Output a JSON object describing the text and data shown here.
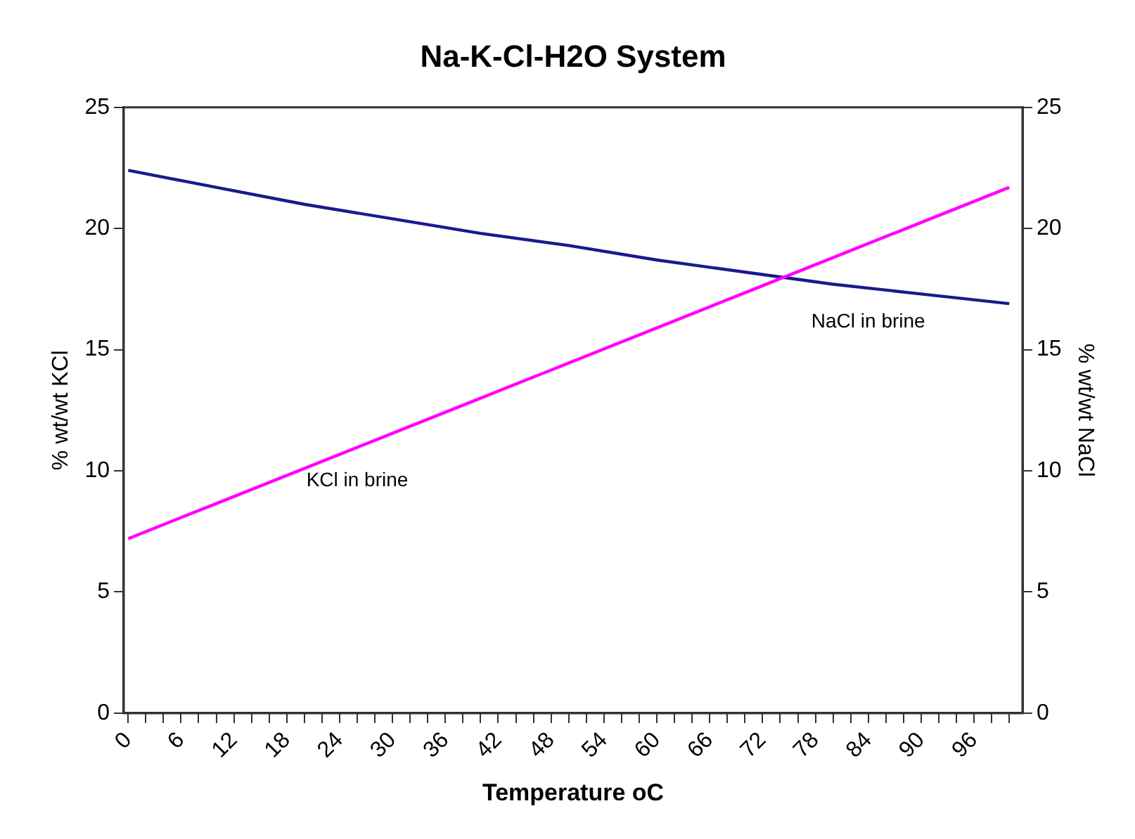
{
  "chart_data": {
    "type": "line",
    "title": "Na-K-Cl-H2O System",
    "xlabel": "Temperature oC",
    "ylabel": "% wt/wt KCl",
    "y2label": "% wt/wt NaCl",
    "x": [
      0,
      10,
      20,
      30,
      40,
      50,
      60,
      70,
      80,
      90,
      100
    ],
    "series": [
      {
        "name": "KCl in brine",
        "color": "#ff00ff",
        "values": [
          7.2,
          8.65,
          10.1,
          11.55,
          13.0,
          14.45,
          15.9,
          17.35,
          18.8,
          20.25,
          21.7
        ]
      },
      {
        "name": "NaCl in brine",
        "color": "#1a1a8c",
        "axis": "y2",
        "values": [
          22.4,
          21.7,
          21.0,
          20.4,
          19.8,
          19.3,
          18.7,
          18.2,
          17.7,
          17.3,
          16.9
        ]
      }
    ],
    "xlim": [
      -0.5,
      101.5
    ],
    "xticks": [
      0,
      {
        "value": 2,
        "label": null
      },
      {
        "value": 4,
        "label": null
      },
      6,
      {
        "value": 8,
        "label": null
      },
      {
        "value": 10,
        "label": null
      },
      12,
      {
        "value": 14,
        "label": null
      },
      {
        "value": 16,
        "label": null
      },
      18,
      {
        "value": 20,
        "label": null
      },
      {
        "value": 22,
        "label": null
      },
      24,
      {
        "value": 26,
        "label": null
      },
      {
        "value": 28,
        "label": null
      },
      30,
      {
        "value": 32,
        "label": null
      },
      {
        "value": 34,
        "label": null
      },
      36,
      {
        "value": 38,
        "label": null
      },
      {
        "value": 40,
        "label": null
      },
      42,
      {
        "value": 44,
        "label": null
      },
      {
        "value": 46,
        "label": null
      },
      48,
      {
        "value": 50,
        "label": null
      },
      {
        "value": 52,
        "label": null
      },
      54,
      {
        "value": 56,
        "label": null
      },
      {
        "value": 58,
        "label": null
      },
      60,
      {
        "value": 62,
        "label": null
      },
      {
        "value": 64,
        "label": null
      },
      66,
      {
        "value": 68,
        "label": null
      },
      {
        "value": 70,
        "label": null
      },
      72,
      {
        "value": 74,
        "label": null
      },
      {
        "value": 76,
        "label": null
      },
      78,
      {
        "value": 80,
        "label": null
      },
      {
        "value": 82,
        "label": null
      },
      84,
      {
        "value": 86,
        "label": null
      },
      {
        "value": 88,
        "label": null
      },
      90,
      {
        "value": 92,
        "label": null
      },
      {
        "value": 94,
        "label": null
      },
      96,
      {
        "value": 98,
        "label": null
      },
      {
        "value": 100,
        "label": null
      }
    ],
    "ylim": [
      0,
      25
    ],
    "yticks": [
      0,
      5,
      10,
      15,
      20,
      25
    ],
    "y2lim": [
      0,
      25
    ],
    "y2ticks": [
      0,
      5,
      10,
      15,
      20,
      25
    ],
    "grid": false,
    "legend": false,
    "marker": "none",
    "line_style": "solid"
  }
}
